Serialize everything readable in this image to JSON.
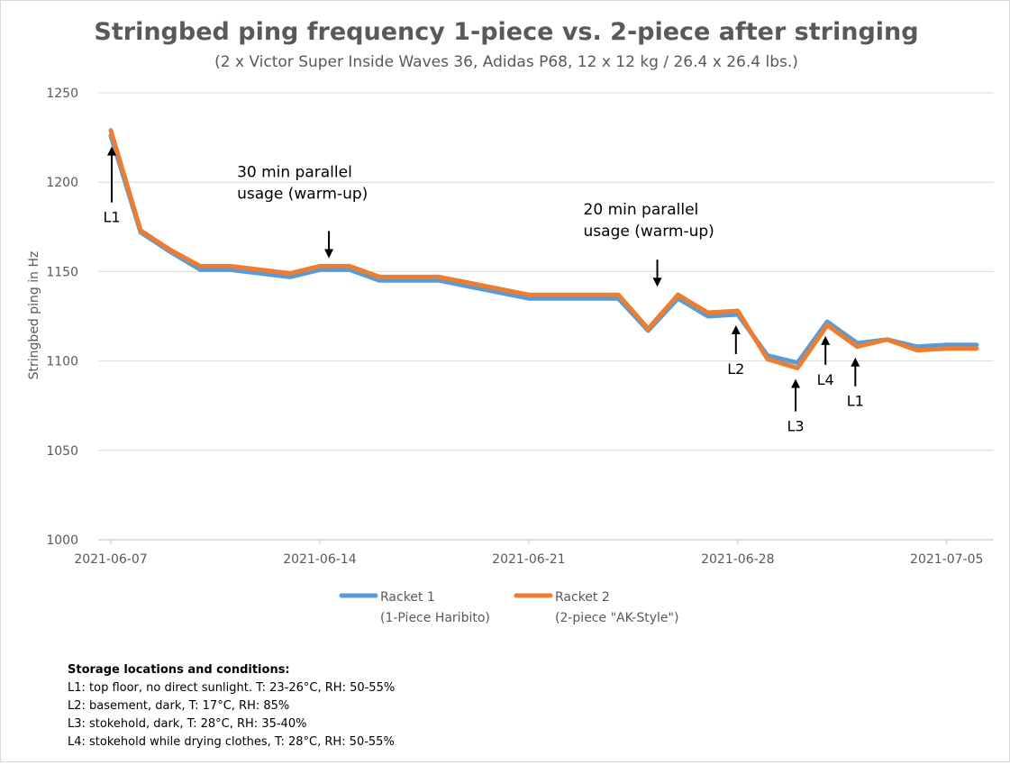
{
  "chart_data": {
    "type": "line",
    "title": "Stringbed ping frequency 1-piece vs. 2-piece after stringing",
    "subtitle": "(2 x Victor Super Inside Waves 36, Adidas P68, 12 x 12 kg / 26.4 x 26.4 lbs.)",
    "ylabel": "Stringbed ping in Hz",
    "xlabel": "",
    "ylim": [
      1000,
      1250
    ],
    "yticks": [
      1000,
      1050,
      1100,
      1150,
      1200,
      1250
    ],
    "xlim": [
      "2021-06-07",
      "2021-07-07"
    ],
    "xticks": [
      "2021-06-07",
      "2021-06-14",
      "2021-06-21",
      "2021-06-28",
      "2021-07-05"
    ],
    "grid": "horizontal",
    "legend": "bottom",
    "colors": {
      "racket1": "#5b9bd5",
      "racket2": "#ed7d31"
    },
    "series": [
      {
        "name": "Racket 1",
        "name_line2": "(1-Piece Haribito)",
        "points": [
          [
            "2021-06-07",
            1226
          ],
          [
            "2021-06-08",
            1172
          ],
          [
            "2021-06-09",
            1161
          ],
          [
            "2021-06-10",
            1151
          ],
          [
            "2021-06-11",
            1151
          ],
          [
            "2021-06-12",
            1149
          ],
          [
            "2021-06-13",
            1147
          ],
          [
            "2021-06-14",
            1151
          ],
          [
            "2021-06-15",
            1151
          ],
          [
            "2021-06-16",
            1145
          ],
          [
            "2021-06-17",
            1145
          ],
          [
            "2021-06-18",
            1145
          ],
          [
            "2021-06-21",
            1135
          ],
          [
            "2021-06-22",
            1135
          ],
          [
            "2021-06-23",
            1135
          ],
          [
            "2021-06-24",
            1135
          ],
          [
            "2021-06-25",
            1117
          ],
          [
            "2021-06-26",
            1135
          ],
          [
            "2021-06-27",
            1125
          ],
          [
            "2021-06-28",
            1126
          ],
          [
            "2021-06-29",
            1103
          ],
          [
            "2021-06-30",
            1099
          ],
          [
            "2021-07-01",
            1122
          ],
          [
            "2021-07-02",
            1110
          ],
          [
            "2021-07-03",
            1112
          ],
          [
            "2021-07-04",
            1108
          ],
          [
            "2021-07-05",
            1109
          ],
          [
            "2021-07-06",
            1109
          ]
        ]
      },
      {
        "name": "Racket 2",
        "name_line2": "(2-piece \"AK-Style\")",
        "points": [
          [
            "2021-06-07",
            1229
          ],
          [
            "2021-06-08",
            1173
          ],
          [
            "2021-06-09",
            1162
          ],
          [
            "2021-06-10",
            1153
          ],
          [
            "2021-06-11",
            1153
          ],
          [
            "2021-06-12",
            1151
          ],
          [
            "2021-06-13",
            1149
          ],
          [
            "2021-06-14",
            1153
          ],
          [
            "2021-06-15",
            1153
          ],
          [
            "2021-06-16",
            1147
          ],
          [
            "2021-06-17",
            1147
          ],
          [
            "2021-06-18",
            1147
          ],
          [
            "2021-06-21",
            1137
          ],
          [
            "2021-06-22",
            1137
          ],
          [
            "2021-06-23",
            1137
          ],
          [
            "2021-06-24",
            1137
          ],
          [
            "2021-06-25",
            1118
          ],
          [
            "2021-06-26",
            1137
          ],
          [
            "2021-06-27",
            1127
          ],
          [
            "2021-06-28",
            1128
          ],
          [
            "2021-06-29",
            1101
          ],
          [
            "2021-06-30",
            1096
          ],
          [
            "2021-07-01",
            1120
          ],
          [
            "2021-07-02",
            1108
          ],
          [
            "2021-07-03",
            1112
          ],
          [
            "2021-07-04",
            1106
          ],
          [
            "2021-07-05",
            1107
          ],
          [
            "2021-07-06",
            1107
          ]
        ]
      }
    ],
    "annotations": [
      {
        "id": "warmup-1",
        "text_lines": [
          "30 min parallel",
          "usage (warm-up)"
        ],
        "arrow": "down",
        "x": "2021-06-15",
        "y": 1153
      },
      {
        "id": "warmup-2",
        "text_lines": [
          "20 min parallel",
          "usage (warm-up)"
        ],
        "arrow": "down",
        "x": "2021-06-26",
        "y": 1137
      }
    ],
    "location_markers": [
      {
        "label": "L1",
        "x": "2021-06-07",
        "y": 1226
      },
      {
        "label": "L2",
        "x": "2021-06-28",
        "y": 1126
      },
      {
        "label": "L3",
        "x": "2021-06-30",
        "y": 1096
      },
      {
        "label": "L4",
        "x": "2021-07-01",
        "y": 1120
      },
      {
        "label": "L1",
        "x": "2021-07-02",
        "y": 1108
      }
    ]
  },
  "notes": {
    "heading": "Storage locations and conditions:",
    "lines": [
      "L1: top floor, no direct sunlight. T: 23-26°C, RH: 50-55%",
      "L2: basement, dark, T: 17°C, RH: 85%",
      "L3: stokehold, dark, T: 28°C, RH: 35-40%",
      "L4: stokehold while drying clothes, T: 28°C, RH: 50-55%"
    ]
  }
}
